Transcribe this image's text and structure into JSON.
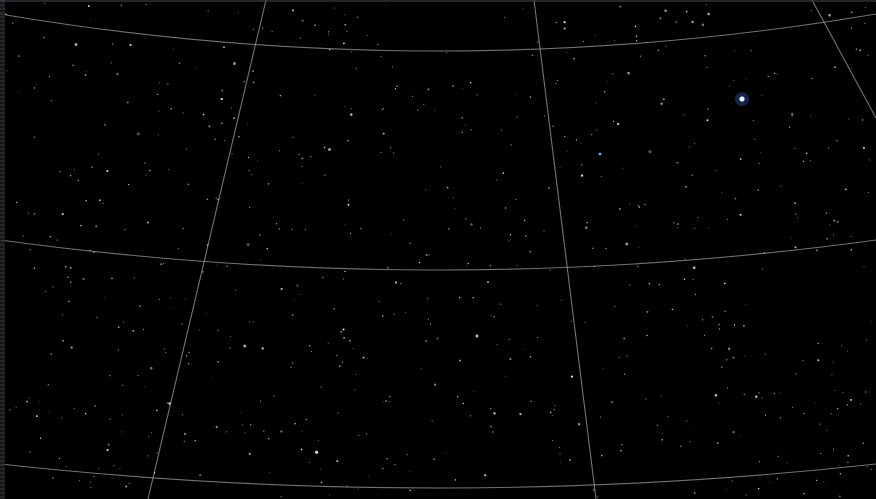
{
  "colors": {
    "background": "#000000",
    "grid_line": "#9a9a9a",
    "star": "#e8ecf2",
    "bright_star": "#bfe1ff",
    "blue_star": "#6fa3ff"
  },
  "sky": {
    "grid_visible": true,
    "grid_type": "equatorial-coordinate-grid",
    "projection": "curved-grid"
  }
}
